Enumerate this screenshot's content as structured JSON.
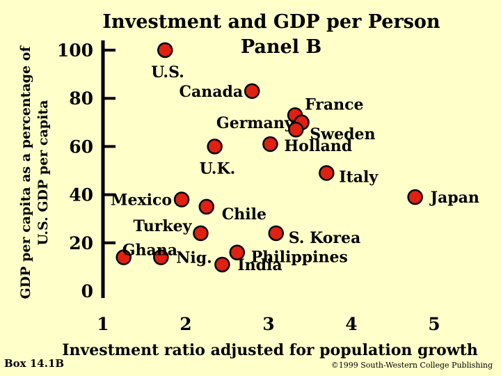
{
  "chart_data": {
    "type": "scatter",
    "title": "Investment and GDP per Person",
    "subtitle": "Panel B",
    "xlabel": "Investment ratio adjusted for population growth",
    "ylabel_line1": "GDP per capita as a percentage of",
    "ylabel_line2": "U.S. GDP per capita",
    "xlim": [
      1,
      5
    ],
    "ylim": [
      0,
      100
    ],
    "x_ticks": [
      "1",
      "2",
      "3",
      "4",
      "5"
    ],
    "y_ticks": [
      "0",
      "20",
      "40",
      "60",
      "80",
      "100"
    ],
    "marker_color": "#e02010",
    "points": [
      {
        "label": "U.S.",
        "x": 1.75,
        "y": 100
      },
      {
        "label": "Canada",
        "x": 2.8,
        "y": 83
      },
      {
        "label": "France",
        "x": 3.32,
        "y": 73
      },
      {
        "label": "Germany",
        "x": 3.4,
        "y": 70
      },
      {
        "label": "Sweden",
        "x": 3.33,
        "y": 67
      },
      {
        "label": "Holland",
        "x": 3.02,
        "y": 61
      },
      {
        "label": "U.K.",
        "x": 2.35,
        "y": 60
      },
      {
        "label": "Italy",
        "x": 3.7,
        "y": 49
      },
      {
        "label": "Japan",
        "x": 4.77,
        "y": 39
      },
      {
        "label": "Mexico",
        "x": 1.95,
        "y": 38
      },
      {
        "label": "Chile",
        "x": 2.25,
        "y": 35
      },
      {
        "label": "Turkey",
        "x": 2.18,
        "y": 24
      },
      {
        "label": "S. Korea",
        "x": 3.09,
        "y": 24
      },
      {
        "label": "Philippines",
        "x": 2.62,
        "y": 16
      },
      {
        "label": "Ghana",
        "x": 1.25,
        "y": 14
      },
      {
        "label": "Nig.",
        "x": 1.7,
        "y": 14
      },
      {
        "label": "India",
        "x": 2.44,
        "y": 11
      }
    ]
  },
  "footer": {
    "box_label": "Box 14.1B",
    "copyright": "©1999 South-Western College Publishing"
  }
}
